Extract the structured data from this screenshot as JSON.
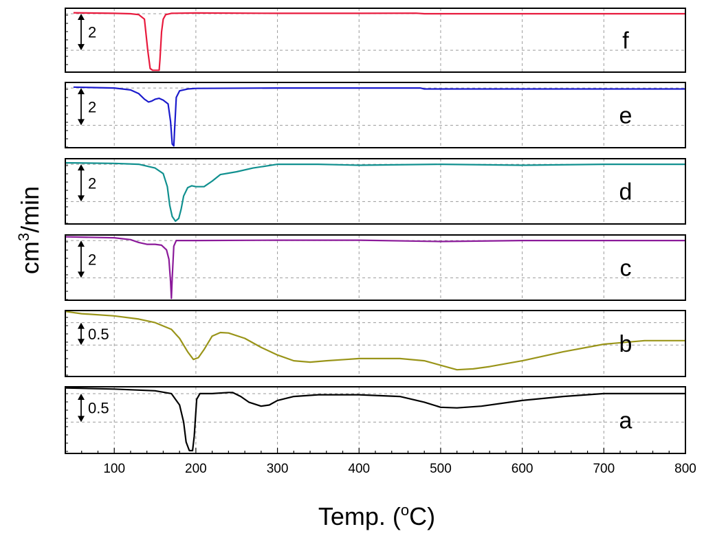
{
  "chart_data": {
    "type": "line",
    "title": "",
    "xlabel": "Temp. (oC)",
    "xlabel_parts": {
      "before": "Temp. (",
      "superscript": "o",
      "after": "C)"
    },
    "ylabel": "cm3/min",
    "ylabel_parts": {
      "before": "cm",
      "superscript": "3",
      "after": "/min"
    },
    "xlim": [
      40,
      800
    ],
    "xticks": [
      "100",
      "200",
      "300",
      "400",
      "500",
      "600",
      "700",
      "800"
    ],
    "grid": true,
    "panels": [
      {
        "label": "f",
        "color": "#e8193c",
        "scale_label": "2",
        "scale_value": 2,
        "ylim": [
          -3.2,
          0.3
        ],
        "points": [
          [
            50,
            0.05
          ],
          [
            100,
            0.02
          ],
          [
            120,
            0
          ],
          [
            130,
            -0.05
          ],
          [
            137,
            -0.3
          ],
          [
            141,
            -2.0
          ],
          [
            144,
            -3.0
          ],
          [
            147,
            -3.1
          ],
          [
            150,
            -3.1
          ],
          [
            153,
            -3.1
          ],
          [
            155,
            -3.1
          ],
          [
            156,
            -2.5
          ],
          [
            158,
            -1.0
          ],
          [
            160,
            -0.3
          ],
          [
            163,
            -0.05
          ],
          [
            170,
            0.02
          ],
          [
            200,
            0.04
          ],
          [
            300,
            0.02
          ],
          [
            400,
            0.02
          ],
          [
            470,
            0.03
          ],
          [
            480,
            0
          ],
          [
            600,
            0
          ],
          [
            700,
            0
          ],
          [
            800,
            0
          ]
        ]
      },
      {
        "label": "e",
        "color": "#1a1acc",
        "scale_label": "2",
        "scale_value": 2,
        "ylim": [
          -3.2,
          0.3
        ],
        "points": [
          [
            50,
            0.05
          ],
          [
            100,
            0
          ],
          [
            120,
            -0.1
          ],
          [
            130,
            -0.3
          ],
          [
            137,
            -0.6
          ],
          [
            142,
            -0.75
          ],
          [
            146,
            -0.7
          ],
          [
            150,
            -0.6
          ],
          [
            155,
            -0.55
          ],
          [
            160,
            -0.65
          ],
          [
            166,
            -0.85
          ],
          [
            169,
            -1.8
          ],
          [
            171,
            -3.0
          ],
          [
            173,
            -3.1
          ],
          [
            174,
            -2.2
          ],
          [
            176,
            -0.5
          ],
          [
            180,
            -0.15
          ],
          [
            190,
            -0.05
          ],
          [
            200,
            -0.02
          ],
          [
            300,
            0
          ],
          [
            400,
            0
          ],
          [
            475,
            0
          ],
          [
            480,
            -0.05
          ],
          [
            600,
            -0.05
          ],
          [
            800,
            -0.05
          ]
        ]
      },
      {
        "label": "d",
        "color": "#10908f",
        "scale_label": "2",
        "scale_value": 2,
        "ylim": [
          -3.2,
          0.3
        ],
        "points": [
          [
            40,
            0.08
          ],
          [
            100,
            0.05
          ],
          [
            130,
            0
          ],
          [
            150,
            -0.2
          ],
          [
            160,
            -0.5
          ],
          [
            165,
            -1.2
          ],
          [
            168,
            -2.2
          ],
          [
            171,
            -2.8
          ],
          [
            175,
            -3.05
          ],
          [
            179,
            -2.9
          ],
          [
            182,
            -2.4
          ],
          [
            185,
            -1.7
          ],
          [
            190,
            -1.25
          ],
          [
            195,
            -1.15
          ],
          [
            200,
            -1.2
          ],
          [
            210,
            -1.2
          ],
          [
            220,
            -0.9
          ],
          [
            230,
            -0.55
          ],
          [
            250,
            -0.4
          ],
          [
            270,
            -0.2
          ],
          [
            300,
            0
          ],
          [
            350,
            0
          ],
          [
            400,
            -0.05
          ],
          [
            500,
            0
          ],
          [
            600,
            -0.05
          ],
          [
            700,
            0
          ],
          [
            800,
            0
          ]
        ]
      },
      {
        "label": "c",
        "color": "#8b1a9a",
        "scale_label": "2",
        "scale_value": 2,
        "ylim": [
          -3.2,
          0.3
        ],
        "points": [
          [
            40,
            0.2
          ],
          [
            100,
            0.15
          ],
          [
            120,
            0.05
          ],
          [
            130,
            -0.1
          ],
          [
            140,
            -0.2
          ],
          [
            150,
            -0.2
          ],
          [
            158,
            -0.25
          ],
          [
            164,
            -0.5
          ],
          [
            167,
            -1.0
          ],
          [
            169,
            -2.2
          ],
          [
            170,
            -3.1
          ],
          [
            171,
            -2.0
          ],
          [
            173,
            -0.3
          ],
          [
            176,
            0
          ],
          [
            200,
            0
          ],
          [
            300,
            0.02
          ],
          [
            400,
            0.02
          ],
          [
            500,
            -0.05
          ],
          [
            600,
            0
          ],
          [
            700,
            0
          ],
          [
            800,
            0
          ]
        ]
      },
      {
        "label": "b",
        "color": "#999418",
        "scale_label": "0.5",
        "scale_value": 0.5,
        "ylim": [
          -1.2,
          0.27
        ],
        "points": [
          [
            40,
            0.25
          ],
          [
            60,
            0.2
          ],
          [
            100,
            0.15
          ],
          [
            130,
            0.08
          ],
          [
            150,
            0
          ],
          [
            170,
            -0.15
          ],
          [
            180,
            -0.35
          ],
          [
            190,
            -0.65
          ],
          [
            197,
            -0.82
          ],
          [
            203,
            -0.78
          ],
          [
            210,
            -0.6
          ],
          [
            220,
            -0.3
          ],
          [
            230,
            -0.22
          ],
          [
            240,
            -0.23
          ],
          [
            260,
            -0.35
          ],
          [
            280,
            -0.55
          ],
          [
            300,
            -0.72
          ],
          [
            320,
            -0.85
          ],
          [
            340,
            -0.88
          ],
          [
            360,
            -0.85
          ],
          [
            400,
            -0.8
          ],
          [
            450,
            -0.8
          ],
          [
            480,
            -0.85
          ],
          [
            510,
            -1.0
          ],
          [
            520,
            -1.05
          ],
          [
            540,
            -1.03
          ],
          [
            560,
            -0.98
          ],
          [
            600,
            -0.85
          ],
          [
            650,
            -0.65
          ],
          [
            700,
            -0.48
          ],
          [
            750,
            -0.4
          ],
          [
            800,
            -0.4
          ]
        ]
      },
      {
        "label": "a",
        "color": "#000000",
        "scale_label": "0.5",
        "scale_value": 0.5,
        "ylim": [
          -1.05,
          0.12
        ],
        "points": [
          [
            40,
            0.1
          ],
          [
            100,
            0.08
          ],
          [
            150,
            0.05
          ],
          [
            170,
            0
          ],
          [
            180,
            -0.2
          ],
          [
            185,
            -0.5
          ],
          [
            188,
            -0.85
          ],
          [
            192,
            -1.0
          ],
          [
            196,
            -1.0
          ],
          [
            198,
            -0.75
          ],
          [
            201,
            -0.1
          ],
          [
            205,
            0
          ],
          [
            220,
            0
          ],
          [
            240,
            0.02
          ],
          [
            245,
            0.02
          ],
          [
            255,
            -0.05
          ],
          [
            265,
            -0.15
          ],
          [
            280,
            -0.22
          ],
          [
            290,
            -0.2
          ],
          [
            300,
            -0.12
          ],
          [
            320,
            -0.05
          ],
          [
            350,
            -0.02
          ],
          [
            400,
            -0.02
          ],
          [
            450,
            -0.05
          ],
          [
            480,
            -0.15
          ],
          [
            500,
            -0.24
          ],
          [
            520,
            -0.25
          ],
          [
            550,
            -0.22
          ],
          [
            600,
            -0.12
          ],
          [
            650,
            -0.05
          ],
          [
            700,
            0
          ],
          [
            750,
            0
          ],
          [
            800,
            0
          ]
        ]
      }
    ]
  }
}
